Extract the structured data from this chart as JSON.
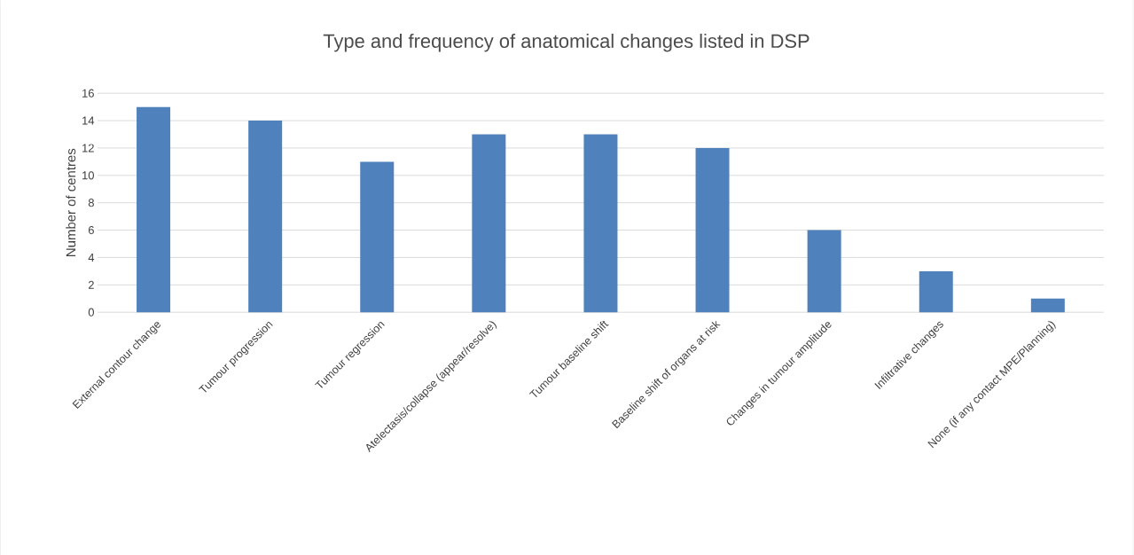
{
  "chart_data": {
    "type": "bar",
    "title": "Type and frequency of anatomical changes listed in DSP",
    "ylabel": "Number of centres",
    "categories": [
      "External contour change",
      "Tumour progression",
      "Tumour regression",
      "Atelectasis/collapse (appear/resolve)",
      "Tumour baseline shift",
      "Baseline shift of organs at risk",
      "Changes in tumour amplitude",
      "Infiltrative changes",
      "None (if any contact MPE/Planning)"
    ],
    "values": [
      15,
      14,
      11,
      13,
      13,
      12,
      6,
      3,
      1
    ],
    "color": "#4f81bd",
    "ylim": [
      0,
      16
    ],
    "yticks": [
      0,
      2,
      4,
      6,
      8,
      10,
      12,
      14,
      16
    ],
    "grid": "y"
  }
}
